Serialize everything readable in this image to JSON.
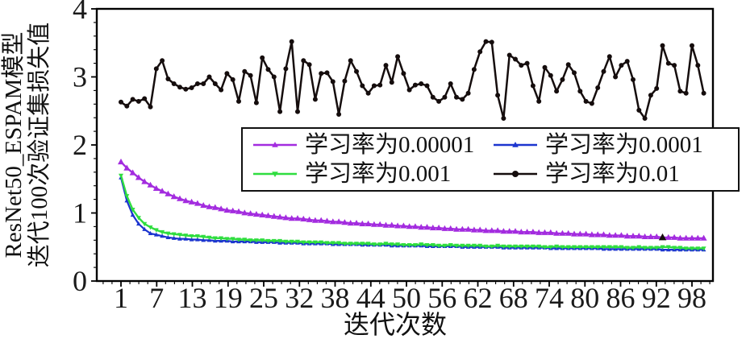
{
  "figure": {
    "ylabel_line1": "ResNet50_ESPAM模型",
    "ylabel_line2": "迭代100次验证集损失值",
    "xlabel": "迭代次数"
  },
  "legend": {
    "items": [
      {
        "label": "学习率为0.00001",
        "color": "#a32cdf",
        "marker": "triangle-up"
      },
      {
        "label": "学习率为0.0001",
        "color": "#1c35cf",
        "marker": "triangle-up"
      },
      {
        "label": "学习率为0.001",
        "color": "#2fdd3f",
        "marker": "triangle-down"
      },
      {
        "label": "学习率为0.01",
        "color": "#150d0d",
        "marker": "circle"
      }
    ]
  },
  "chart_data": {
    "type": "line",
    "title": "",
    "xlabel": "迭代次数",
    "ylabel": "ResNet50_ESPAM模型 迭代100次验证集损失值",
    "x_range": [
      1,
      100
    ],
    "ylim": [
      0,
      4
    ],
    "grid": false,
    "legend_position": "inside upper-right, 2 columns",
    "xticks": [
      "1",
      "7",
      "13",
      "19",
      "25",
      "32",
      "38",
      "44",
      "50",
      "56",
      "62",
      "68",
      "74",
      "80",
      "86",
      "92",
      "98"
    ],
    "yticks": [
      "0",
      "1",
      "2",
      "3",
      "4"
    ],
    "series": [
      {
        "name": "学习率为0.0001",
        "color": "#1c35cf",
        "marker": "triangle-up",
        "marker_size": 3.0,
        "line_width": 2.2,
        "values": [
          1.52,
          1.18,
          0.97,
          0.84,
          0.76,
          0.7,
          0.68,
          0.66,
          0.64,
          0.63,
          0.62,
          0.62,
          0.61,
          0.61,
          0.6,
          0.6,
          0.59,
          0.59,
          0.59,
          0.58,
          0.58,
          0.58,
          0.58,
          0.57,
          0.57,
          0.57,
          0.57,
          0.56,
          0.56,
          0.56,
          0.56,
          0.55,
          0.55,
          0.55,
          0.55,
          0.55,
          0.54,
          0.54,
          0.54,
          0.54,
          0.54,
          0.53,
          0.53,
          0.53,
          0.53,
          0.53,
          0.52,
          0.52,
          0.52,
          0.52,
          0.52,
          0.52,
          0.51,
          0.51,
          0.51,
          0.51,
          0.51,
          0.51,
          0.5,
          0.5,
          0.5,
          0.5,
          0.5,
          0.5,
          0.5,
          0.49,
          0.49,
          0.49,
          0.49,
          0.49,
          0.49,
          0.49,
          0.49,
          0.48,
          0.48,
          0.48,
          0.48,
          0.48,
          0.48,
          0.48,
          0.48,
          0.48,
          0.47,
          0.47,
          0.47,
          0.47,
          0.47,
          0.47,
          0.47,
          0.47,
          0.47,
          0.47,
          0.46,
          0.46,
          0.46,
          0.46,
          0.46,
          0.46,
          0.46,
          0.46
        ]
      },
      {
        "name": "学习率为0.001",
        "color": "#2fdd3f",
        "marker": "triangle-down",
        "marker_size": 3.2,
        "line_width": 2.4,
        "values": [
          1.55,
          1.25,
          1.05,
          0.93,
          0.84,
          0.79,
          0.75,
          0.72,
          0.7,
          0.69,
          0.68,
          0.67,
          0.66,
          0.66,
          0.65,
          0.64,
          0.63,
          0.63,
          0.62,
          0.62,
          0.61,
          0.61,
          0.6,
          0.6,
          0.6,
          0.59,
          0.59,
          0.59,
          0.58,
          0.58,
          0.58,
          0.57,
          0.57,
          0.57,
          0.57,
          0.56,
          0.56,
          0.56,
          0.55,
          0.55,
          0.55,
          0.55,
          0.55,
          0.54,
          0.54,
          0.55,
          0.54,
          0.54,
          0.53,
          0.53,
          0.53,
          0.54,
          0.53,
          0.53,
          0.52,
          0.52,
          0.53,
          0.52,
          0.52,
          0.52,
          0.52,
          0.52,
          0.51,
          0.51,
          0.52,
          0.51,
          0.51,
          0.51,
          0.51,
          0.51,
          0.51,
          0.51,
          0.5,
          0.5,
          0.51,
          0.5,
          0.5,
          0.5,
          0.5,
          0.5,
          0.5,
          0.5,
          0.5,
          0.5,
          0.5,
          0.5,
          0.49,
          0.49,
          0.5,
          0.49,
          0.49,
          0.49,
          0.5,
          0.5,
          0.49,
          0.49,
          0.48,
          0.48,
          0.48,
          0.48
        ]
      },
      {
        "name": "学习率为0.00001",
        "color": "#a32cdf",
        "marker": "triangle-up",
        "marker_size": 4.2,
        "line_width": 2.4,
        "values": [
          1.75,
          1.66,
          1.59,
          1.52,
          1.46,
          1.41,
          1.36,
          1.32,
          1.28,
          1.24,
          1.21,
          1.18,
          1.16,
          1.14,
          1.11,
          1.09,
          1.08,
          1.06,
          1.04,
          1.03,
          1.02,
          1.0,
          0.99,
          0.98,
          0.97,
          0.96,
          0.95,
          0.94,
          0.93,
          0.92,
          0.92,
          0.91,
          0.9,
          0.89,
          0.89,
          0.88,
          0.87,
          0.87,
          0.86,
          0.85,
          0.85,
          0.84,
          0.84,
          0.83,
          0.83,
          0.82,
          0.82,
          0.81,
          0.81,
          0.8,
          0.8,
          0.79,
          0.79,
          0.78,
          0.78,
          0.77,
          0.77,
          0.76,
          0.76,
          0.76,
          0.75,
          0.75,
          0.74,
          0.74,
          0.74,
          0.73,
          0.73,
          0.73,
          0.72,
          0.72,
          0.72,
          0.71,
          0.71,
          0.71,
          0.7,
          0.7,
          0.7,
          0.69,
          0.69,
          0.69,
          0.68,
          0.68,
          0.68,
          0.67,
          0.67,
          0.67,
          0.66,
          0.66,
          0.66,
          0.65,
          0.65,
          0.65,
          0.64,
          0.64,
          0.64,
          0.63,
          0.63,
          0.63,
          0.63,
          0.63
        ]
      },
      {
        "name": "学习率为0.01",
        "color": "#150d0d",
        "marker": "circle",
        "marker_size": 3.0,
        "line_width": 2.5,
        "values": [
          2.63,
          2.57,
          2.67,
          2.64,
          2.68,
          2.56,
          3.12,
          3.24,
          2.97,
          2.9,
          2.85,
          2.82,
          2.84,
          2.9,
          2.9,
          3.0,
          2.9,
          2.81,
          3.05,
          2.96,
          2.64,
          3.08,
          3.02,
          2.62,
          3.28,
          3.11,
          3.0,
          2.49,
          3.12,
          3.52,
          2.49,
          3.24,
          3.18,
          2.67,
          3.05,
          3.06,
          2.93,
          2.45,
          2.94,
          3.24,
          3.08,
          2.87,
          2.76,
          2.87,
          2.88,
          3.17,
          2.92,
          3.3,
          3.05,
          2.81,
          2.88,
          2.9,
          2.87,
          2.7,
          2.64,
          2.7,
          2.9,
          2.7,
          2.67,
          2.76,
          3.11,
          3.37,
          3.52,
          3.51,
          2.73,
          2.39,
          3.32,
          3.26,
          3.17,
          3.2,
          2.87,
          2.64,
          3.14,
          3.02,
          2.79,
          2.96,
          3.18,
          3.06,
          2.79,
          2.64,
          2.61,
          2.84,
          3.08,
          3.3,
          3.0,
          3.17,
          3.23,
          2.96,
          2.51,
          2.39,
          2.73,
          2.83,
          3.46,
          3.2,
          3.17,
          2.79,
          2.76,
          3.46,
          3.17,
          2.76
        ]
      }
    ],
    "stray_marker": {
      "x": 93,
      "value": 0.64,
      "color": "#150d0d",
      "marker": "triangle-up"
    }
  }
}
